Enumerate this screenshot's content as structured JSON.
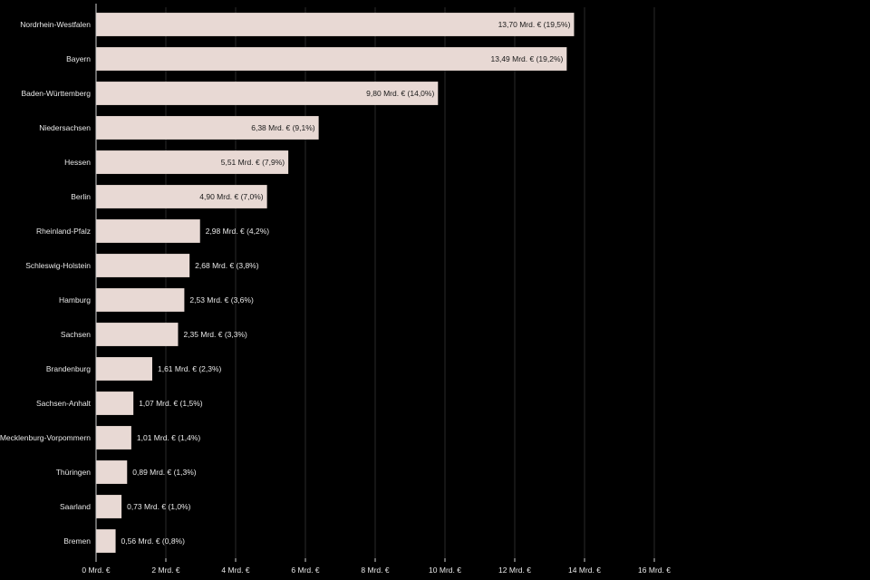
{
  "colors": {
    "background": "#000000",
    "bar": "#e8d9d4",
    "text": "#e8e8e8",
    "grid": "#2a2a2a"
  },
  "chart_data": {
    "type": "bar",
    "orientation": "horizontal",
    "categories": [
      "Nordrhein-Westfalen",
      "Bayern",
      "Baden-Württemberg",
      "Niedersachsen",
      "Hessen",
      "Berlin",
      "Rheinland-Pfalz",
      "Schleswig-Holstein",
      "Hamburg",
      "Sachsen",
      "Brandenburg",
      "Sachsen-Anhalt",
      "Mecklenburg-Vorpommern",
      "Thüringen",
      "Saarland",
      "Bremen"
    ],
    "values": [
      13.7,
      13.49,
      9.8,
      6.38,
      5.51,
      4.9,
      2.98,
      2.68,
      2.53,
      2.35,
      1.61,
      1.07,
      1.01,
      0.89,
      0.73,
      0.56
    ],
    "value_labels": [
      "13,70 Mrd. € (19,5%)",
      "13,49 Mrd. € (19,2%)",
      "9,80 Mrd. € (14,0%)",
      "6,38 Mrd. € (9,1%)",
      "5,51 Mrd. € (7,9%)",
      "4,90 Mrd. € (7,0%)",
      "2,98 Mrd. € (4,2%)",
      "2,68 Mrd. € (3,8%)",
      "2,53 Mrd. € (3,6%)",
      "2,35 Mrd. € (3,3%)",
      "1,61 Mrd. € (2,3%)",
      "1,07 Mrd. € (1,5%)",
      "1,01 Mrd. € (1,4%)",
      "0,89 Mrd. € (1,3%)",
      "0,73 Mrd. € (1,0%)",
      "0,56 Mrd. € (0,8%)"
    ],
    "x_ticks": [
      0,
      2,
      4,
      6,
      8,
      10,
      12,
      14,
      16
    ],
    "x_tick_labels": [
      "0 Mrd. €",
      "2 Mrd. €",
      "4 Mrd. €",
      "6 Mrd. €",
      "8 Mrd. €",
      "10 Mrd. €",
      "12 Mrd. €",
      "14 Mrd. €",
      "16 Mrd. €"
    ],
    "xlim": [
      0,
      16
    ],
    "title": "",
    "xlabel": "",
    "ylabel": "",
    "grid": true,
    "legend": "none"
  }
}
